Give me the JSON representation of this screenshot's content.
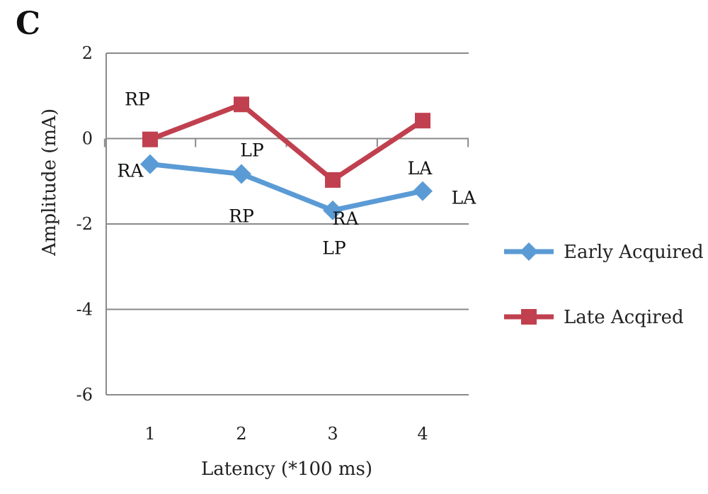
{
  "panel_label": "C",
  "chart_data": {
    "type": "line",
    "xlabel": "Latency (*100 ms)",
    "ylabel": "Amplitude (mA)",
    "categories": [
      "1",
      "2",
      "3",
      "4"
    ],
    "ylim": [
      -6,
      2
    ],
    "yticks": [
      "2",
      "0",
      "-2",
      "-4",
      "-6"
    ],
    "grid": true,
    "legend_placement": "right",
    "series": [
      {
        "name": "Early Acquired",
        "color": "#5b9bd5",
        "marker": "diamond",
        "values": [
          -0.6,
          -0.83,
          -1.68,
          -1.23
        ],
        "labels": [
          "RA",
          "RP",
          "LP",
          "LA"
        ]
      },
      {
        "name": "Late Acqired",
        "color": "#c0404f",
        "marker": "square",
        "values": [
          -0.02,
          0.8,
          -0.97,
          0.42
        ],
        "labels": [
          "RP",
          "LP",
          "RA",
          "LA"
        ]
      }
    ]
  }
}
